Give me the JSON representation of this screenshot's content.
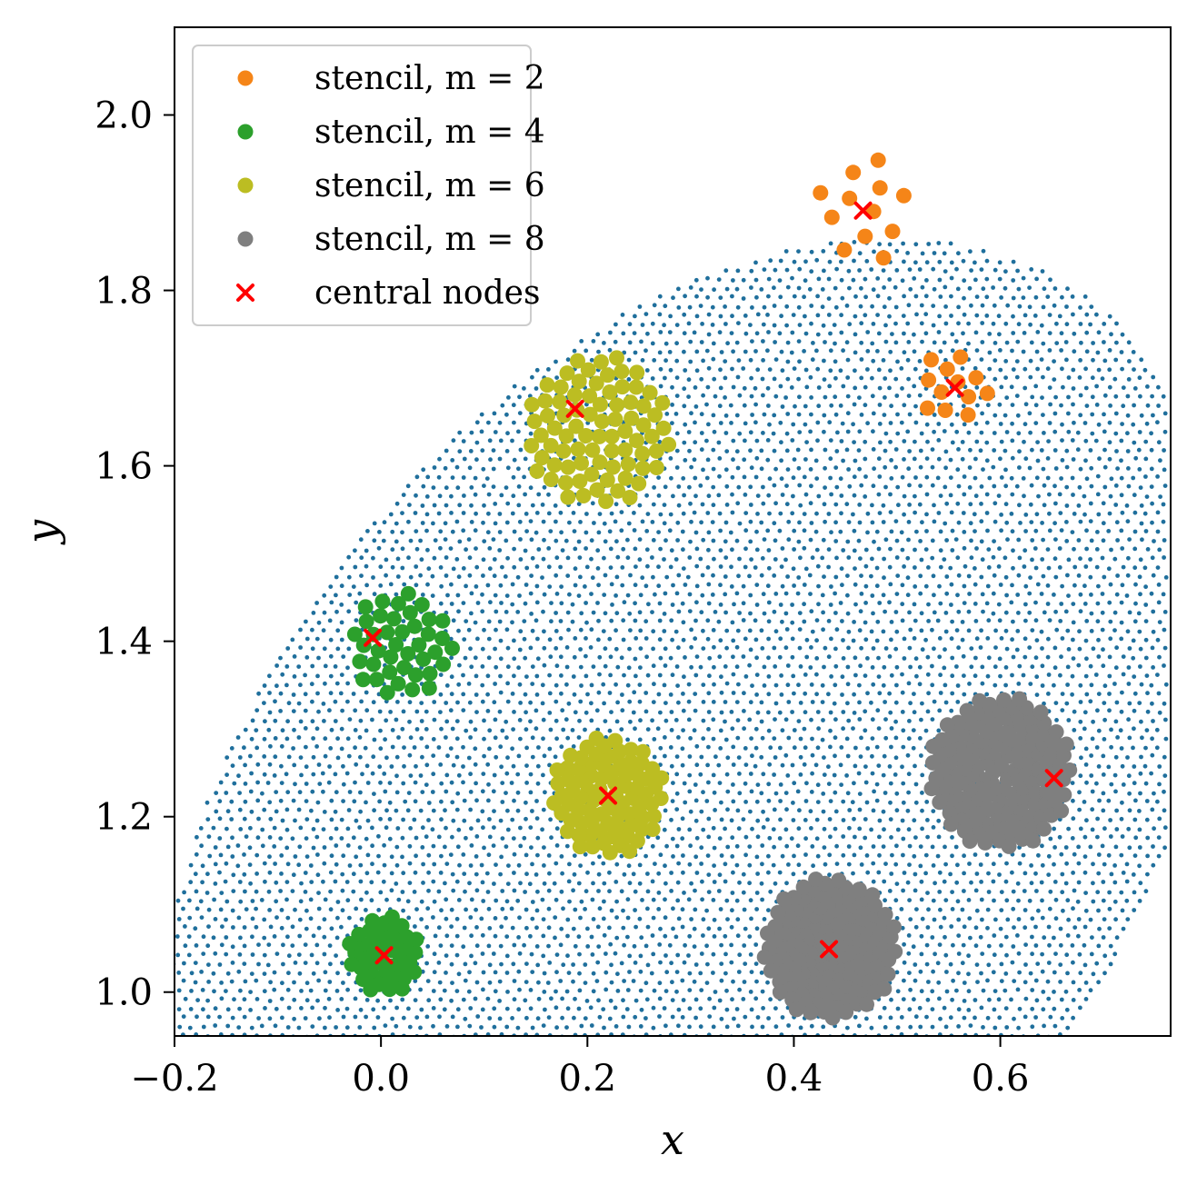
{
  "chart_data": {
    "type": "scatter",
    "title": "",
    "xlabel": "x",
    "ylabel": "y",
    "xlim": [
      -0.2,
      0.765
    ],
    "ylim": [
      0.95,
      2.1
    ],
    "grid": false,
    "xticks": [
      -0.2,
      0.0,
      0.2,
      0.4,
      0.6
    ],
    "xtick_labels": [
      "−0.2",
      "0.0",
      "0.2",
      "0.4",
      "0.6"
    ],
    "yticks": [
      1.0,
      1.2,
      1.4,
      1.6,
      1.8,
      2.0
    ],
    "ytick_labels": [
      "1.0",
      "1.2",
      "1.4",
      "1.6",
      "1.8",
      "2.0"
    ],
    "legend_position": "top-left",
    "colors": {
      "background_nodes": "#1f6f9c",
      "m2": "#f58518",
      "m4": "#2ca02c",
      "m6": "#bcbd22",
      "m8": "#7f7f7f",
      "central": "#ff0000"
    },
    "legend": [
      {
        "key": "m2",
        "label": "stencil, m = 2",
        "marker": "circle"
      },
      {
        "key": "m4",
        "label": "stencil, m = 4",
        "marker": "circle"
      },
      {
        "key": "m6",
        "label": "stencil, m = 6",
        "marker": "circle"
      },
      {
        "key": "m8",
        "label": "stencil, m = 8",
        "marker": "circle"
      },
      {
        "key": "central",
        "label": "central nodes",
        "marker": "x"
      }
    ],
    "domain_shape": {
      "description": "ellipse-like region clipped by lines, filled with small blue nodes",
      "ellipse_center": [
        0.3,
        1.2
      ],
      "ellipse_radii": [
        0.44,
        0.71
      ],
      "ellipse_rotation_deg": -28,
      "node_spacing": 0.0118
    },
    "stencils": [
      {
        "key": "m2",
        "center": [
          0.467,
          1.89
        ],
        "radius": 0.05,
        "count": 12
      },
      {
        "key": "m2",
        "center": [
          0.555,
          1.688
        ],
        "radius": 0.035,
        "count": 12
      },
      {
        "key": "m4",
        "center": [
          0.003,
          1.042
        ],
        "radius": 0.036,
        "count": 40
      },
      {
        "key": "m4",
        "center": [
          0.02,
          1.395
        ],
        "radius": 0.05,
        "count": 40
      },
      {
        "key": "m6",
        "center": [
          0.22,
          1.224
        ],
        "radius": 0.055,
        "count": 80
      },
      {
        "key": "m6",
        "center": [
          0.21,
          1.64
        ],
        "radius": 0.07,
        "count": 80
      },
      {
        "key": "m8",
        "center": [
          0.435,
          1.05
        ],
        "radius": 0.065,
        "count": 140
      },
      {
        "key": "m8",
        "center": [
          0.6,
          1.25
        ],
        "radius": 0.07,
        "count": 140
      }
    ],
    "central_nodes": [
      {
        "x": 0.467,
        "y": 1.891
      },
      {
        "x": 0.556,
        "y": 1.689
      },
      {
        "x": 0.188,
        "y": 1.665
      },
      {
        "x": -0.008,
        "y": 1.404
      },
      {
        "x": 0.22,
        "y": 1.224
      },
      {
        "x": 0.003,
        "y": 1.042
      },
      {
        "x": 0.434,
        "y": 1.049
      },
      {
        "x": 0.652,
        "y": 1.244
      }
    ]
  }
}
